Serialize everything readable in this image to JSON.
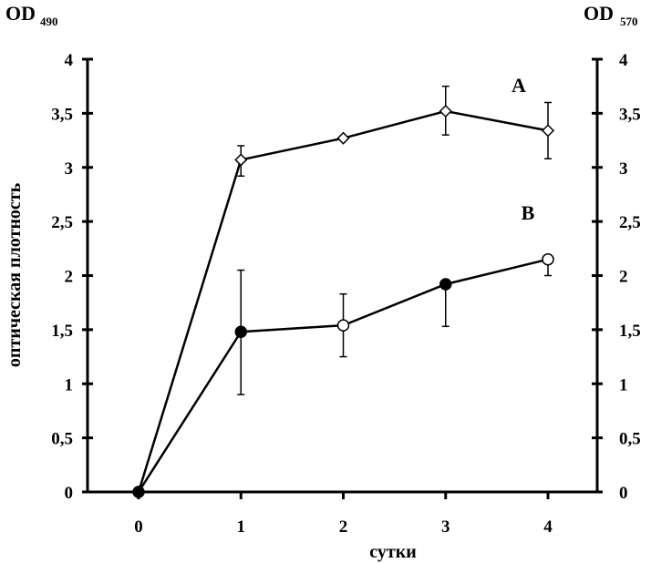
{
  "chart_data": {
    "type": "line",
    "xlabel": "сутки",
    "ylabel": "оптическая плотность",
    "y_left_title": {
      "main": "OD",
      "sub": "490"
    },
    "y_right_title": {
      "main": "OD",
      "sub": "570"
    },
    "x": [
      0,
      1,
      2,
      3,
      4
    ],
    "x_ticks": [
      "0",
      "1",
      "2",
      "3",
      "4"
    ],
    "ylim": [
      0,
      4
    ],
    "y_ticks": [
      "0",
      "0,5",
      "1",
      "1,5",
      "2",
      "2,5",
      "3",
      "3,5",
      "4"
    ],
    "grid": false,
    "series": [
      {
        "name": "A",
        "marker": "diamond",
        "values": [
          0.0,
          3.07,
          3.27,
          3.52,
          3.34
        ],
        "err_low": [
          null,
          2.92,
          null,
          3.3,
          3.08
        ],
        "err_high": [
          null,
          3.2,
          null,
          3.75,
          3.6
        ]
      },
      {
        "name": "B",
        "marker": "circle",
        "values": [
          0.0,
          1.48,
          1.54,
          1.92,
          2.15
        ],
        "filled": [
          true,
          true,
          false,
          true,
          false
        ],
        "err_low": [
          null,
          0.9,
          1.25,
          1.53,
          2.0
        ],
        "err_high": [
          null,
          2.05,
          1.83,
          null,
          null
        ]
      }
    ]
  }
}
